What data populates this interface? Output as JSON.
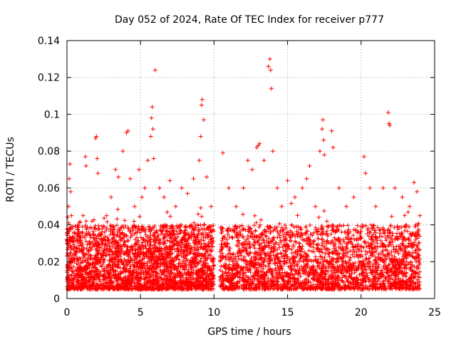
{
  "chart_data": {
    "type": "scatter",
    "title": "Day 052 of 2024, Rate Of TEC Index for receiver p777",
    "xlabel": "GPS time / hours",
    "ylabel": "ROTI / TECUs",
    "xlim": [
      0,
      25
    ],
    "ylim": [
      0,
      0.14
    ],
    "x_ticks": [
      0,
      5,
      10,
      15,
      20,
      25
    ],
    "y_ticks": [
      0,
      0.02,
      0.04,
      0.06,
      0.08,
      0.1,
      0.12,
      0.14
    ],
    "x_tick_labels": [
      "0",
      "5",
      "10",
      "15",
      "20",
      "25"
    ],
    "y_tick_labels": [
      "0",
      "0.02",
      "0.04",
      "0.06",
      "0.08",
      "0.1",
      "0.12",
      "0.14"
    ],
    "grid": true,
    "marker": "+",
    "color": "#ff0000",
    "series": [
      {
        "name": "ROTI",
        "points": [
          [
            0.05,
            0.012
          ],
          [
            0.1,
            0.05
          ],
          [
            0.15,
            0.065
          ],
          [
            0.2,
            0.073
          ],
          [
            0.25,
            0.058
          ],
          [
            0.3,
            0.045
          ],
          [
            0.35,
            0.038
          ],
          [
            0.5,
            0.028
          ],
          [
            0.7,
            0.022
          ],
          [
            0.9,
            0.03
          ],
          [
            1.1,
            0.045
          ],
          [
            1.25,
            0.077
          ],
          [
            1.3,
            0.072
          ],
          [
            1.5,
            0.035
          ],
          [
            1.7,
            0.042
          ],
          [
            1.95,
            0.087
          ],
          [
            2.0,
            0.088
          ],
          [
            2.05,
            0.076
          ],
          [
            2.1,
            0.068
          ],
          [
            2.4,
            0.03
          ],
          [
            2.7,
            0.045
          ],
          [
            3.0,
            0.055
          ],
          [
            3.3,
            0.07
          ],
          [
            3.5,
            0.066
          ],
          [
            3.8,
            0.08
          ],
          [
            4.05,
            0.09
          ],
          [
            4.15,
            0.091
          ],
          [
            4.3,
            0.065
          ],
          [
            4.6,
            0.05
          ],
          [
            4.9,
            0.07
          ],
          [
            5.1,
            0.055
          ],
          [
            5.3,
            0.06
          ],
          [
            5.5,
            0.075
          ],
          [
            5.7,
            0.088
          ],
          [
            5.75,
            0.098
          ],
          [
            5.8,
            0.104
          ],
          [
            5.85,
            0.092
          ],
          [
            5.9,
            0.076
          ],
          [
            6.0,
            0.124
          ],
          [
            6.3,
            0.06
          ],
          [
            6.6,
            0.055
          ],
          [
            7.0,
            0.064
          ],
          [
            7.4,
            0.05
          ],
          [
            7.8,
            0.06
          ],
          [
            8.2,
            0.057
          ],
          [
            8.6,
            0.065
          ],
          [
            9.0,
            0.075
          ],
          [
            9.1,
            0.088
          ],
          [
            9.15,
            0.105
          ],
          [
            9.2,
            0.108
          ],
          [
            9.3,
            0.097
          ],
          [
            9.5,
            0.066
          ],
          [
            9.8,
            0.05
          ],
          [
            9.9,
            0.03
          ],
          [
            10.6,
            0.079
          ],
          [
            11.0,
            0.06
          ],
          [
            11.5,
            0.05
          ],
          [
            12.0,
            0.06
          ],
          [
            12.3,
            0.075
          ],
          [
            12.6,
            0.07
          ],
          [
            12.9,
            0.082
          ],
          [
            13.0,
            0.083
          ],
          [
            13.1,
            0.084
          ],
          [
            13.4,
            0.075
          ],
          [
            13.7,
            0.126
          ],
          [
            13.8,
            0.13
          ],
          [
            13.85,
            0.124
          ],
          [
            13.9,
            0.114
          ],
          [
            14.0,
            0.08
          ],
          [
            14.3,
            0.06
          ],
          [
            14.6,
            0.05
          ],
          [
            15.0,
            0.064
          ],
          [
            15.5,
            0.055
          ],
          [
            16.0,
            0.06
          ],
          [
            16.3,
            0.065
          ],
          [
            16.5,
            0.072
          ],
          [
            16.9,
            0.05
          ],
          [
            17.2,
            0.08
          ],
          [
            17.35,
            0.092
          ],
          [
            17.4,
            0.097
          ],
          [
            17.45,
            0.086
          ],
          [
            17.5,
            0.078
          ],
          [
            18.0,
            0.091
          ],
          [
            18.1,
            0.082
          ],
          [
            18.5,
            0.06
          ],
          [
            19.0,
            0.05
          ],
          [
            19.5,
            0.055
          ],
          [
            20.2,
            0.077
          ],
          [
            20.3,
            0.068
          ],
          [
            20.6,
            0.06
          ],
          [
            21.0,
            0.05
          ],
          [
            21.5,
            0.06
          ],
          [
            21.85,
            0.101
          ],
          [
            21.9,
            0.095
          ],
          [
            21.95,
            0.094
          ],
          [
            22.3,
            0.06
          ],
          [
            22.8,
            0.055
          ],
          [
            23.3,
            0.05
          ],
          [
            23.6,
            0.063
          ],
          [
            23.8,
            0.058
          ],
          [
            24.0,
            0.045
          ]
        ],
        "band": {
          "description": "dense cluster of ROTI values",
          "segments": [
            {
              "x": [
                0.0,
                10.0
              ],
              "y": [
                0.005,
                0.04
              ]
            },
            {
              "x": [
                10.4,
                24.0
              ],
              "y": [
                0.005,
                0.04
              ]
            }
          ],
          "n": 5200
        }
      }
    ]
  }
}
